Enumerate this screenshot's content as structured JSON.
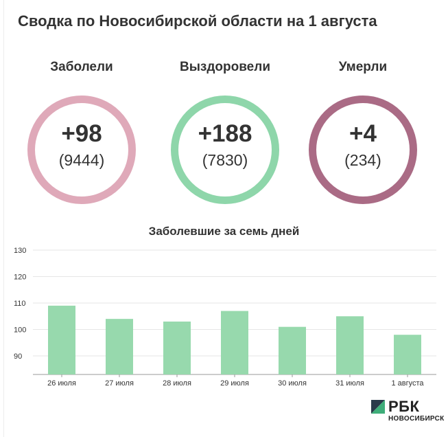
{
  "title": "Сводка по Новосибирской области на 1 августа",
  "colors": {
    "infected": "#dfa9b9",
    "recovered": "#8ed6aa",
    "deaths": "#aa6b85",
    "bar": "#97d9ad"
  },
  "stats": [
    {
      "label": "Заболели",
      "delta": "+98",
      "total": "(9444)"
    },
    {
      "label": "Выздоровели",
      "delta": "+188",
      "total": "(7830)"
    },
    {
      "label": "Умерли",
      "delta": "+4",
      "total": "(234)"
    }
  ],
  "chart_data": {
    "type": "bar",
    "title": "Заболевшие за семь дней",
    "categories": [
      "26 июля",
      "27 июля",
      "28 июля",
      "29 июля",
      "30 июля",
      "31 июля",
      "1 августа"
    ],
    "values": [
      109,
      104,
      103,
      107,
      101,
      105,
      98
    ],
    "ylim": [
      83,
      130
    ],
    "yticks": [
      "90",
      "100",
      "110",
      "120",
      "130"
    ],
    "grid": true
  },
  "brand": {
    "name": "РБК",
    "city": "НОВОСИБИРСК"
  }
}
